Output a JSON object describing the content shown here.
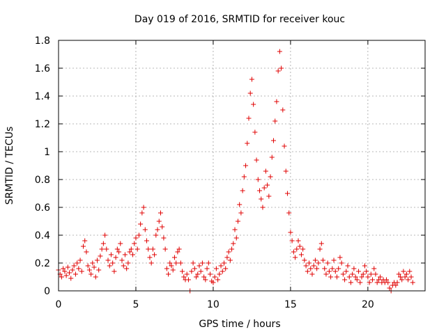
{
  "chart_data": {
    "type": "scatter",
    "title": "Day 019 of 2016, SRMTID for receiver kouc",
    "xlabel": "GPS time / hours",
    "ylabel": "SRMTID / TECUs",
    "xlim": [
      0,
      23.7
    ],
    "ylim": [
      0,
      1.8
    ],
    "xticks": [
      0,
      5,
      10,
      15,
      20
    ],
    "xtick_labels": [
      "0",
      "5",
      "10",
      "15",
      "20"
    ],
    "yticks": [
      0,
      0.2,
      0.4,
      0.6,
      0.8,
      1.0,
      1.2,
      1.4,
      1.6,
      1.8
    ],
    "ytick_labels": [
      "0",
      "0.2",
      "0.4",
      "0.6",
      "0.8",
      "1",
      "1.2",
      "1.4",
      "1.6",
      "1.8"
    ],
    "grid": true,
    "marker": "+",
    "color": "#e00000",
    "series": [
      {
        "name": "SRMTID",
        "points": [
          [
            0.0,
            0.15
          ],
          [
            0.1,
            0.12
          ],
          [
            0.2,
            0.1
          ],
          [
            0.3,
            0.16
          ],
          [
            0.4,
            0.14
          ],
          [
            0.5,
            0.11
          ],
          [
            0.6,
            0.17
          ],
          [
            0.7,
            0.13
          ],
          [
            0.8,
            0.09
          ],
          [
            0.9,
            0.15
          ],
          [
            1.0,
            0.18
          ],
          [
            1.1,
            0.12
          ],
          [
            1.2,
            0.2
          ],
          [
            1.3,
            0.16
          ],
          [
            1.4,
            0.22
          ],
          [
            1.5,
            0.14
          ],
          [
            1.6,
            0.32
          ],
          [
            1.7,
            0.36
          ],
          [
            1.8,
            0.28
          ],
          [
            1.9,
            0.18
          ],
          [
            2.0,
            0.15
          ],
          [
            2.1,
            0.12
          ],
          [
            2.2,
            0.2
          ],
          [
            2.3,
            0.17
          ],
          [
            2.4,
            0.1
          ],
          [
            2.5,
            0.22
          ],
          [
            2.6,
            0.15
          ],
          [
            2.7,
            0.25
          ],
          [
            2.8,
            0.3
          ],
          [
            2.9,
            0.34
          ],
          [
            3.0,
            0.4
          ],
          [
            3.1,
            0.3
          ],
          [
            3.2,
            0.22
          ],
          [
            3.3,
            0.18
          ],
          [
            3.4,
            0.26
          ],
          [
            3.5,
            0.2
          ],
          [
            3.6,
            0.14
          ],
          [
            3.7,
            0.24
          ],
          [
            3.8,
            0.3
          ],
          [
            3.9,
            0.28
          ],
          [
            4.0,
            0.34
          ],
          [
            4.1,
            0.22
          ],
          [
            4.2,
            0.18
          ],
          [
            4.3,
            0.26
          ],
          [
            4.4,
            0.16
          ],
          [
            4.5,
            0.2
          ],
          [
            4.6,
            0.28
          ],
          [
            4.7,
            0.3
          ],
          [
            4.8,
            0.26
          ],
          [
            4.9,
            0.34
          ],
          [
            5.0,
            0.38
          ],
          [
            5.1,
            0.3
          ],
          [
            5.2,
            0.4
          ],
          [
            5.3,
            0.48
          ],
          [
            5.4,
            0.56
          ],
          [
            5.5,
            0.6
          ],
          [
            5.6,
            0.44
          ],
          [
            5.7,
            0.36
          ],
          [
            5.8,
            0.3
          ],
          [
            5.9,
            0.24
          ],
          [
            6.0,
            0.2
          ],
          [
            6.1,
            0.3
          ],
          [
            6.2,
            0.26
          ],
          [
            6.3,
            0.4
          ],
          [
            6.4,
            0.44
          ],
          [
            6.5,
            0.5
          ],
          [
            6.6,
            0.56
          ],
          [
            6.7,
            0.46
          ],
          [
            6.8,
            0.38
          ],
          [
            6.9,
            0.3
          ],
          [
            7.0,
            0.16
          ],
          [
            7.1,
            0.12
          ],
          [
            7.2,
            0.2
          ],
          [
            7.3,
            0.18
          ],
          [
            7.4,
            0.15
          ],
          [
            7.5,
            0.24
          ],
          [
            7.6,
            0.2
          ],
          [
            7.7,
            0.28
          ],
          [
            7.8,
            0.3
          ],
          [
            7.9,
            0.2
          ],
          [
            8.0,
            0.14
          ],
          [
            8.1,
            0.1
          ],
          [
            8.2,
            0.08
          ],
          [
            8.3,
            0.12
          ],
          [
            8.4,
            0.08
          ],
          [
            8.5,
            0.0
          ],
          [
            8.6,
            0.14
          ],
          [
            8.7,
            0.2
          ],
          [
            8.8,
            0.16
          ],
          [
            8.9,
            0.1
          ],
          [
            9.0,
            0.12
          ],
          [
            9.1,
            0.18
          ],
          [
            9.2,
            0.14
          ],
          [
            9.3,
            0.2
          ],
          [
            9.4,
            0.1
          ],
          [
            9.5,
            0.08
          ],
          [
            9.6,
            0.16
          ],
          [
            9.7,
            0.2
          ],
          [
            9.8,
            0.12
          ],
          [
            9.9,
            0.07
          ],
          [
            10.0,
            0.06
          ],
          [
            10.1,
            0.1
          ],
          [
            10.2,
            0.16
          ],
          [
            10.3,
            0.08
          ],
          [
            10.4,
            0.12
          ],
          [
            10.5,
            0.18
          ],
          [
            10.6,
            0.14
          ],
          [
            10.7,
            0.2
          ],
          [
            10.8,
            0.16
          ],
          [
            10.9,
            0.24
          ],
          [
            11.0,
            0.28
          ],
          [
            11.1,
            0.22
          ],
          [
            11.2,
            0.3
          ],
          [
            11.3,
            0.34
          ],
          [
            11.4,
            0.44
          ],
          [
            11.5,
            0.38
          ],
          [
            11.6,
            0.5
          ],
          [
            11.7,
            0.62
          ],
          [
            11.8,
            0.56
          ],
          [
            11.9,
            0.72
          ],
          [
            12.0,
            0.82
          ],
          [
            12.1,
            0.9
          ],
          [
            12.2,
            1.06
          ],
          [
            12.3,
            1.24
          ],
          [
            12.4,
            1.42
          ],
          [
            12.5,
            1.52
          ],
          [
            12.6,
            1.34
          ],
          [
            12.7,
            1.14
          ],
          [
            12.8,
            0.94
          ],
          [
            12.9,
            0.8
          ],
          [
            13.0,
            0.72
          ],
          [
            13.1,
            0.66
          ],
          [
            13.2,
            0.6
          ],
          [
            13.3,
            0.74
          ],
          [
            13.4,
            0.86
          ],
          [
            13.5,
            0.76
          ],
          [
            13.6,
            0.68
          ],
          [
            13.7,
            0.82
          ],
          [
            13.8,
            0.96
          ],
          [
            13.9,
            1.08
          ],
          [
            14.0,
            1.22
          ],
          [
            14.1,
            1.36
          ],
          [
            14.2,
            1.58
          ],
          [
            14.3,
            1.72
          ],
          [
            14.4,
            1.6
          ],
          [
            14.5,
            1.3
          ],
          [
            14.6,
            1.04
          ],
          [
            14.7,
            0.86
          ],
          [
            14.8,
            0.7
          ],
          [
            14.9,
            0.56
          ],
          [
            15.0,
            0.42
          ],
          [
            15.1,
            0.36
          ],
          [
            15.2,
            0.28
          ],
          [
            15.3,
            0.24
          ],
          [
            15.4,
            0.3
          ],
          [
            15.5,
            0.36
          ],
          [
            15.6,
            0.32
          ],
          [
            15.7,
            0.26
          ],
          [
            15.8,
            0.3
          ],
          [
            15.9,
            0.22
          ],
          [
            16.0,
            0.18
          ],
          [
            16.1,
            0.14
          ],
          [
            16.2,
            0.2
          ],
          [
            16.3,
            0.16
          ],
          [
            16.4,
            0.12
          ],
          [
            16.5,
            0.18
          ],
          [
            16.6,
            0.22
          ],
          [
            16.7,
            0.16
          ],
          [
            16.8,
            0.2
          ],
          [
            16.9,
            0.3
          ],
          [
            17.0,
            0.34
          ],
          [
            17.1,
            0.22
          ],
          [
            17.2,
            0.16
          ],
          [
            17.3,
            0.12
          ],
          [
            17.4,
            0.2
          ],
          [
            17.5,
            0.14
          ],
          [
            17.6,
            0.1
          ],
          [
            17.7,
            0.16
          ],
          [
            17.8,
            0.22
          ],
          [
            17.9,
            0.14
          ],
          [
            18.0,
            0.1
          ],
          [
            18.1,
            0.16
          ],
          [
            18.2,
            0.24
          ],
          [
            18.3,
            0.2
          ],
          [
            18.4,
            0.12
          ],
          [
            18.5,
            0.08
          ],
          [
            18.6,
            0.14
          ],
          [
            18.7,
            0.18
          ],
          [
            18.8,
            0.1
          ],
          [
            18.9,
            0.06
          ],
          [
            19.0,
            0.12
          ],
          [
            19.1,
            0.16
          ],
          [
            19.2,
            0.1
          ],
          [
            19.3,
            0.08
          ],
          [
            19.4,
            0.14
          ],
          [
            19.5,
            0.06
          ],
          [
            19.6,
            0.1
          ],
          [
            19.7,
            0.12
          ],
          [
            19.8,
            0.18
          ],
          [
            19.9,
            0.14
          ],
          [
            20.0,
            0.1
          ],
          [
            20.1,
            0.06
          ],
          [
            20.2,
            0.12
          ],
          [
            20.3,
            0.08
          ],
          [
            20.4,
            0.16
          ],
          [
            20.5,
            0.12
          ],
          [
            20.6,
            0.06
          ],
          [
            20.7,
            0.08
          ],
          [
            20.8,
            0.1
          ],
          [
            20.9,
            0.06
          ],
          [
            21.0,
            0.08
          ],
          [
            21.1,
            0.06
          ],
          [
            21.2,
            0.08
          ],
          [
            21.3,
            0.06
          ],
          [
            21.4,
            0.02
          ],
          [
            21.5,
            0.0
          ],
          [
            21.6,
            0.04
          ],
          [
            21.7,
            0.06
          ],
          [
            21.8,
            0.04
          ],
          [
            21.9,
            0.06
          ],
          [
            22.0,
            0.12
          ],
          [
            22.1,
            0.1
          ],
          [
            22.2,
            0.08
          ],
          [
            22.3,
            0.14
          ],
          [
            22.4,
            0.1
          ],
          [
            22.5,
            0.12
          ],
          [
            22.6,
            0.08
          ],
          [
            22.7,
            0.14
          ],
          [
            22.8,
            0.1
          ],
          [
            22.9,
            0.06
          ]
        ]
      }
    ]
  }
}
